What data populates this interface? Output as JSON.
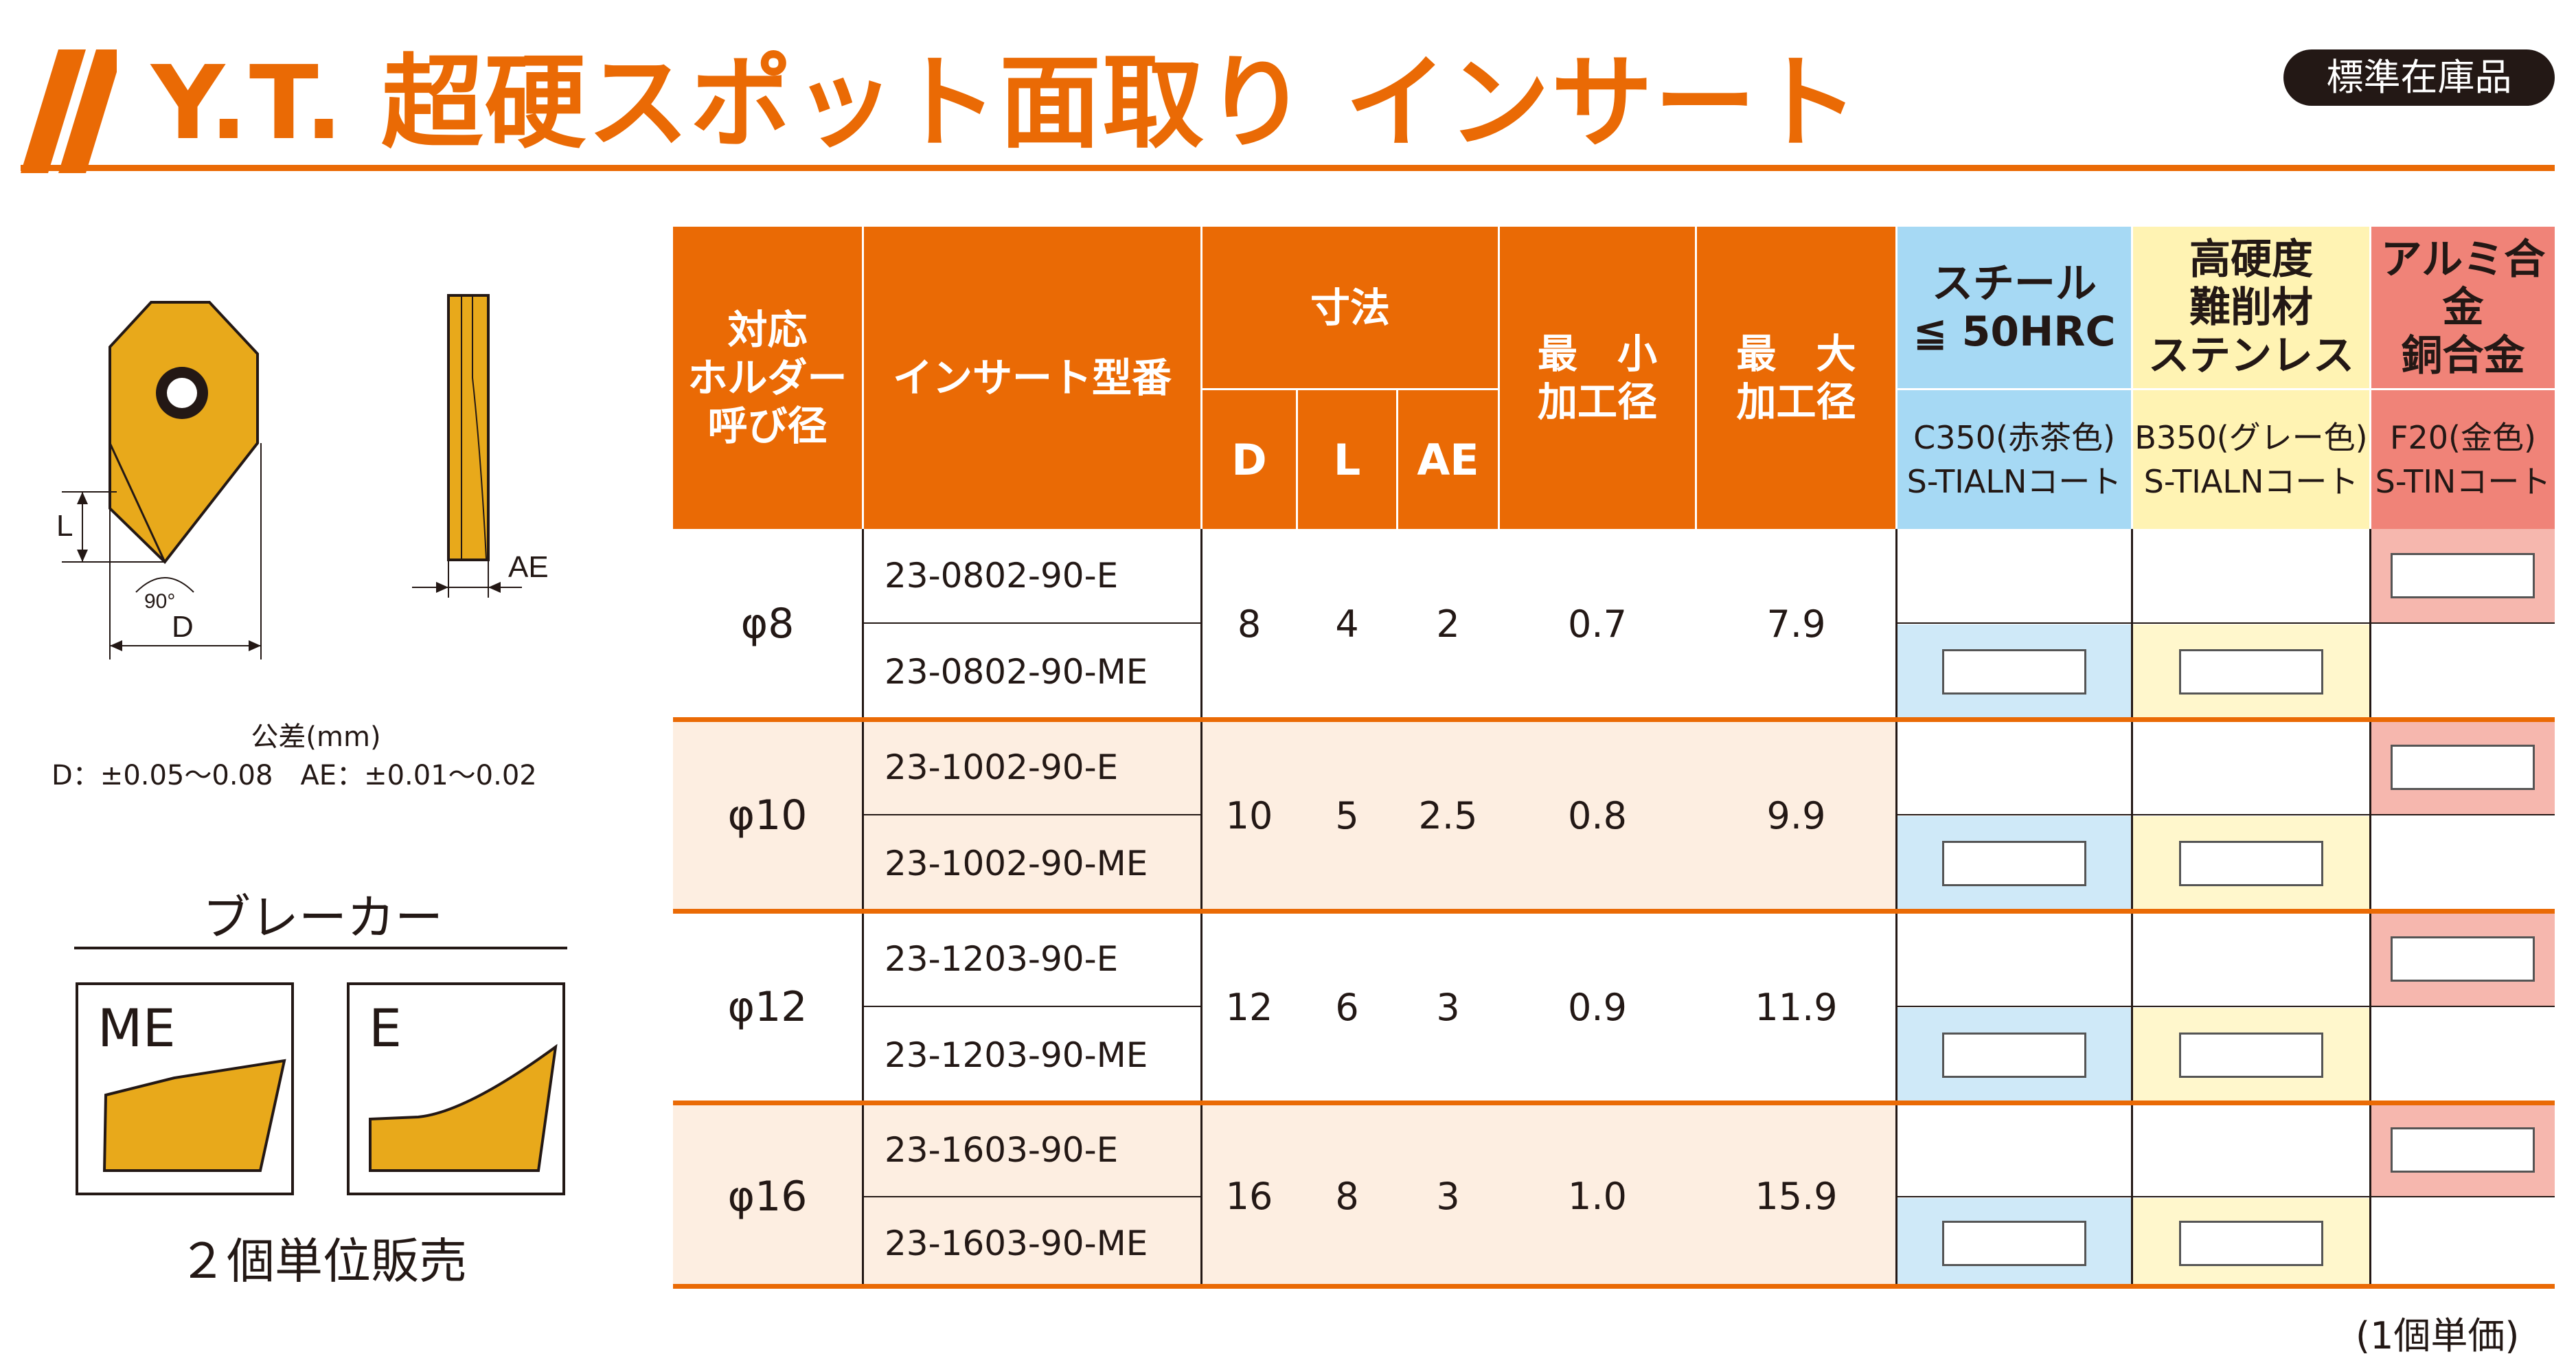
{
  "header": {
    "title": "Y.T. 超硬スポット面取り インサート",
    "stock_badge": "標準在庫品"
  },
  "diagram": {
    "label_l": "L",
    "label_angle": "90°",
    "label_d": "D",
    "label_ae": "AE"
  },
  "tolerance": {
    "title": "公差(mm)",
    "values": "D：±0.05～0.08　AE：±0.01～0.02"
  },
  "breaker": {
    "title": "ブレーカー",
    "types": [
      {
        "label": "ME"
      },
      {
        "label": "E"
      }
    ],
    "sold_note": "２個単位販売"
  },
  "table": {
    "headers": {
      "holder_dia": "対応\nホルダー\n呼び径",
      "insert_model": "インサート型番",
      "dimensions": "寸法",
      "dim_d": "D",
      "dim_l": "L",
      "dim_ae": "AE",
      "min_dia": "最　小\n加工径",
      "max_dia": "最　大\n加工径"
    },
    "coatings": [
      {
        "material": "スチール\n≦ 50HRC",
        "grade": "C350(赤茶色)\nS-TIALNコート",
        "color": "#a6d9f4"
      },
      {
        "material": "高硬度\n難削材\nステンレス",
        "grade": "B350(グレー色)\nS-TIALNコート",
        "color": "#fff3b3"
      },
      {
        "material": "アルミ合金\n銅合金",
        "grade": "F20(金色)\nS-TINコート",
        "color": "#f08378"
      }
    ],
    "groups": [
      {
        "holder": "φ8",
        "d": "8",
        "l": "4",
        "ae": "2",
        "min": "0.7",
        "max": "7.9",
        "models": [
          "23-0802-90-E",
          "23-0802-90-ME"
        ]
      },
      {
        "holder": "φ10",
        "d": "10",
        "l": "5",
        "ae": "2.5",
        "min": "0.8",
        "max": "9.9",
        "models": [
          "23-1002-90-E",
          "23-1002-90-ME"
        ]
      },
      {
        "holder": "φ12",
        "d": "12",
        "l": "6",
        "ae": "3",
        "min": "0.9",
        "max": "11.9",
        "models": [
          "23-1203-90-E",
          "23-1203-90-ME"
        ]
      },
      {
        "holder": "φ16",
        "d": "16",
        "l": "8",
        "ae": "3",
        "min": "1.0",
        "max": "15.9",
        "models": [
          "23-1603-90-E",
          "23-1603-90-ME"
        ]
      }
    ]
  },
  "footer": {
    "unit_note": "(1個単価)"
  }
}
